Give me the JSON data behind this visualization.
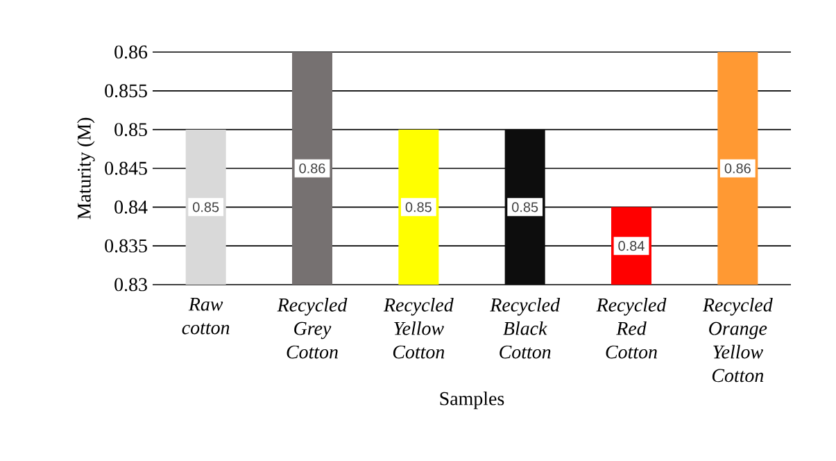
{
  "chart_data": {
    "type": "bar",
    "xlabel": "Samples",
    "ylabel": "Maturity (M)",
    "categories": [
      "Raw cotton",
      "Recycled Grey Cotton",
      "Recycled Yellow Cotton",
      "Recycled Black Cotton",
      "Recycled Red Cotton",
      "Recycled Orange Yellow Cotton"
    ],
    "values": [
      0.85,
      0.86,
      0.85,
      0.85,
      0.84,
      0.86
    ],
    "colors": [
      "#d9d9d9",
      "#767171",
      "#ffff00",
      "#0d0d0d",
      "#ff0000",
      "#ff9933"
    ],
    "ylim": [
      0.83,
      0.86
    ],
    "yticks": [
      0.83,
      0.835,
      0.84,
      0.845,
      0.85,
      0.855,
      0.86
    ],
    "grid": "y",
    "data_labels": true
  }
}
